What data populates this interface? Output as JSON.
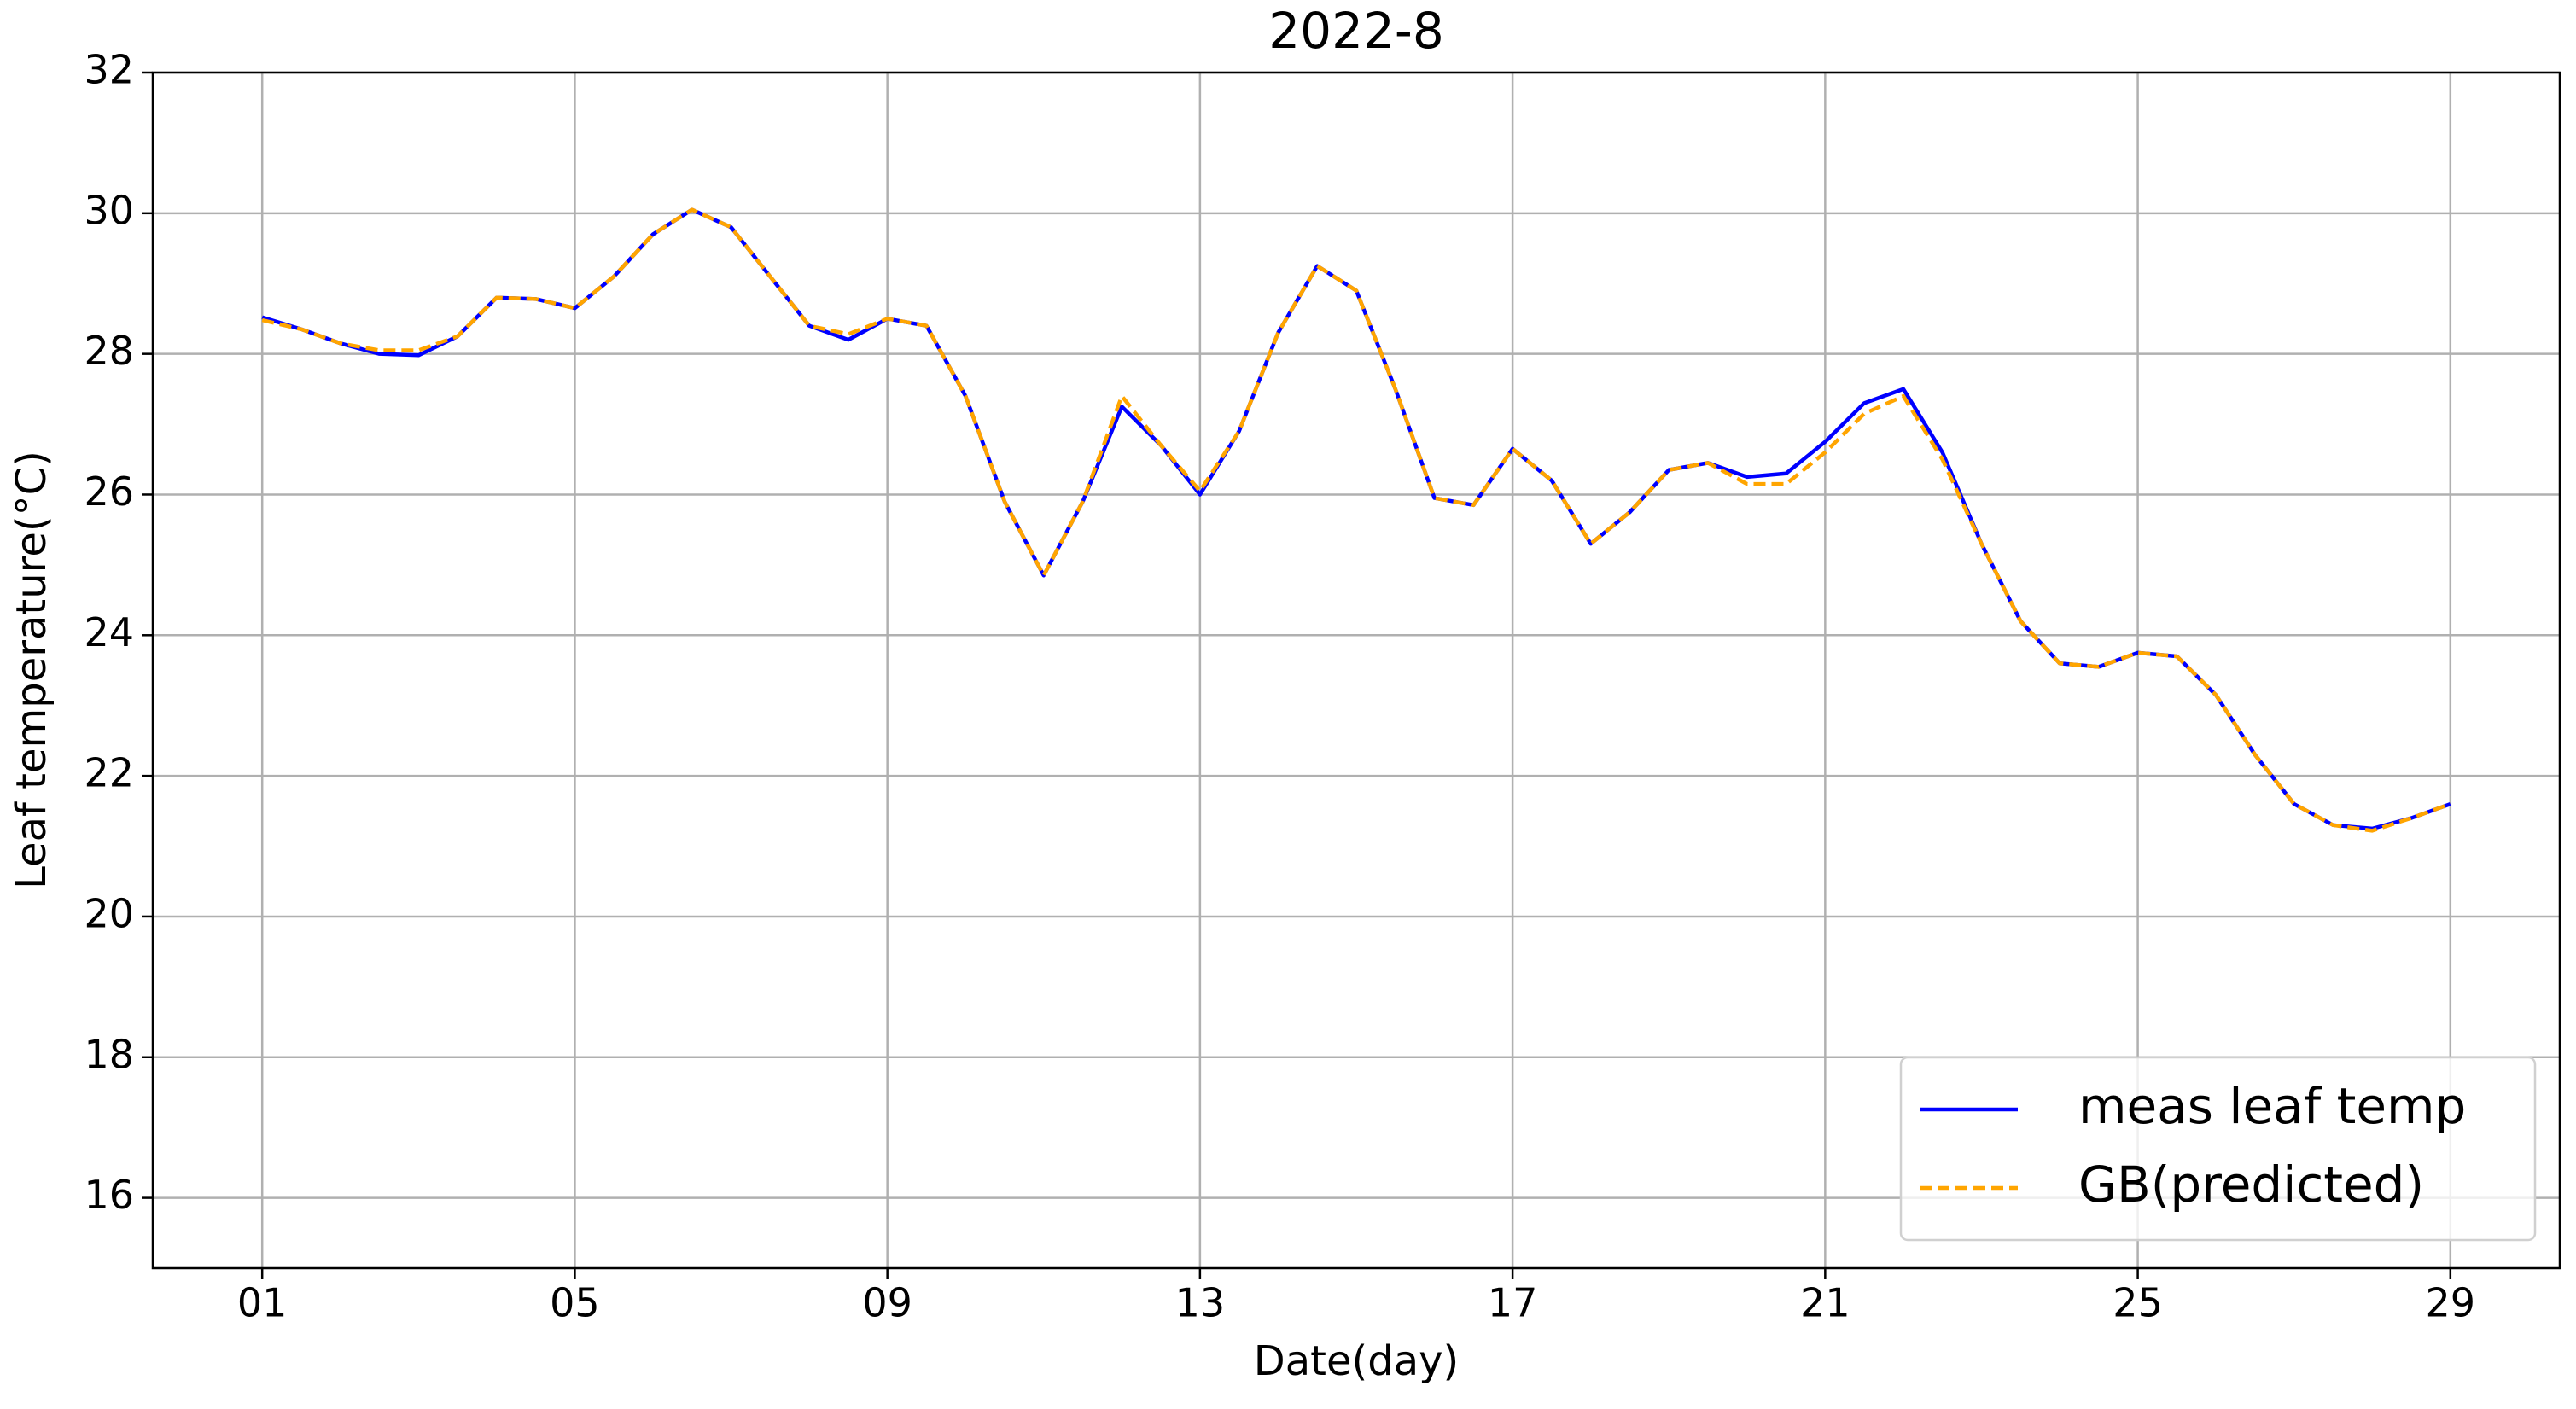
{
  "chart_data": {
    "type": "line",
    "title": "2022-8",
    "xlabel": "Date(day)",
    "ylabel": "Leaf temperature(°C)",
    "x": [
      1,
      1.5,
      2,
      2.5,
      3,
      3.5,
      4,
      4.5,
      5,
      5.5,
      6,
      6.5,
      7,
      7.5,
      8,
      8.5,
      9,
      9.5,
      10,
      10.5,
      11,
      11.5,
      12,
      12.5,
      13,
      13.5,
      14,
      14.5,
      15,
      15.5,
      16,
      16.5,
      17,
      17.5,
      18,
      18.5,
      19,
      19.5,
      20,
      20.5,
      21,
      21.5,
      22,
      22.5,
      23,
      23.5,
      24,
      24.5,
      25,
      25.5,
      26,
      26.5,
      27,
      27.5,
      28,
      28.5,
      29
    ],
    "series": [
      {
        "name": "meas leaf temp",
        "color": "#0000ff",
        "linestyle": "solid",
        "values": [
          28.52,
          28.35,
          28.15,
          28.0,
          27.98,
          28.25,
          28.8,
          28.78,
          28.65,
          29.1,
          29.7,
          30.05,
          29.8,
          29.1,
          28.4,
          28.2,
          28.5,
          28.4,
          27.4,
          25.9,
          24.85,
          25.9,
          27.25,
          26.7,
          26.0,
          26.9,
          28.3,
          29.25,
          28.9,
          27.5,
          25.95,
          25.85,
          26.65,
          26.2,
          25.3,
          25.75,
          26.35,
          26.45,
          26.25,
          26.3,
          26.75,
          27.3,
          27.5,
          26.6,
          25.3,
          24.2,
          23.6,
          23.55,
          23.75,
          23.7,
          23.15,
          22.3,
          21.6,
          21.3,
          21.25,
          21.4,
          21.6
        ]
      },
      {
        "name": "GB(predicted)",
        "color": "#ffa500",
        "linestyle": "dashed",
        "values": [
          28.48,
          28.35,
          28.15,
          28.05,
          28.05,
          28.25,
          28.8,
          28.78,
          28.65,
          29.1,
          29.7,
          30.05,
          29.8,
          29.1,
          28.4,
          28.28,
          28.5,
          28.4,
          27.4,
          25.9,
          24.85,
          25.9,
          27.4,
          26.7,
          26.05,
          26.9,
          28.3,
          29.25,
          28.9,
          27.5,
          25.95,
          25.85,
          26.65,
          26.2,
          25.3,
          25.75,
          26.35,
          26.45,
          26.15,
          26.15,
          26.6,
          27.15,
          27.4,
          26.5,
          25.3,
          24.2,
          23.6,
          23.55,
          23.75,
          23.7,
          23.15,
          22.3,
          21.6,
          21.3,
          21.22,
          21.4,
          21.6
        ]
      }
    ],
    "xlim": [
      -0.4,
      30.4
    ],
    "xticks": [
      {
        "value": 1,
        "label": "01"
      },
      {
        "value": 5,
        "label": "05"
      },
      {
        "value": 9,
        "label": "09"
      },
      {
        "value": 13,
        "label": "13"
      },
      {
        "value": 17,
        "label": "17"
      },
      {
        "value": 21,
        "label": "21"
      },
      {
        "value": 25,
        "label": "25"
      },
      {
        "value": 29,
        "label": "29"
      }
    ],
    "ylim": [
      15,
      32
    ],
    "yticks": [
      16,
      18,
      20,
      22,
      24,
      26,
      28,
      30,
      32
    ],
    "grid": true,
    "legend": "lower right"
  }
}
